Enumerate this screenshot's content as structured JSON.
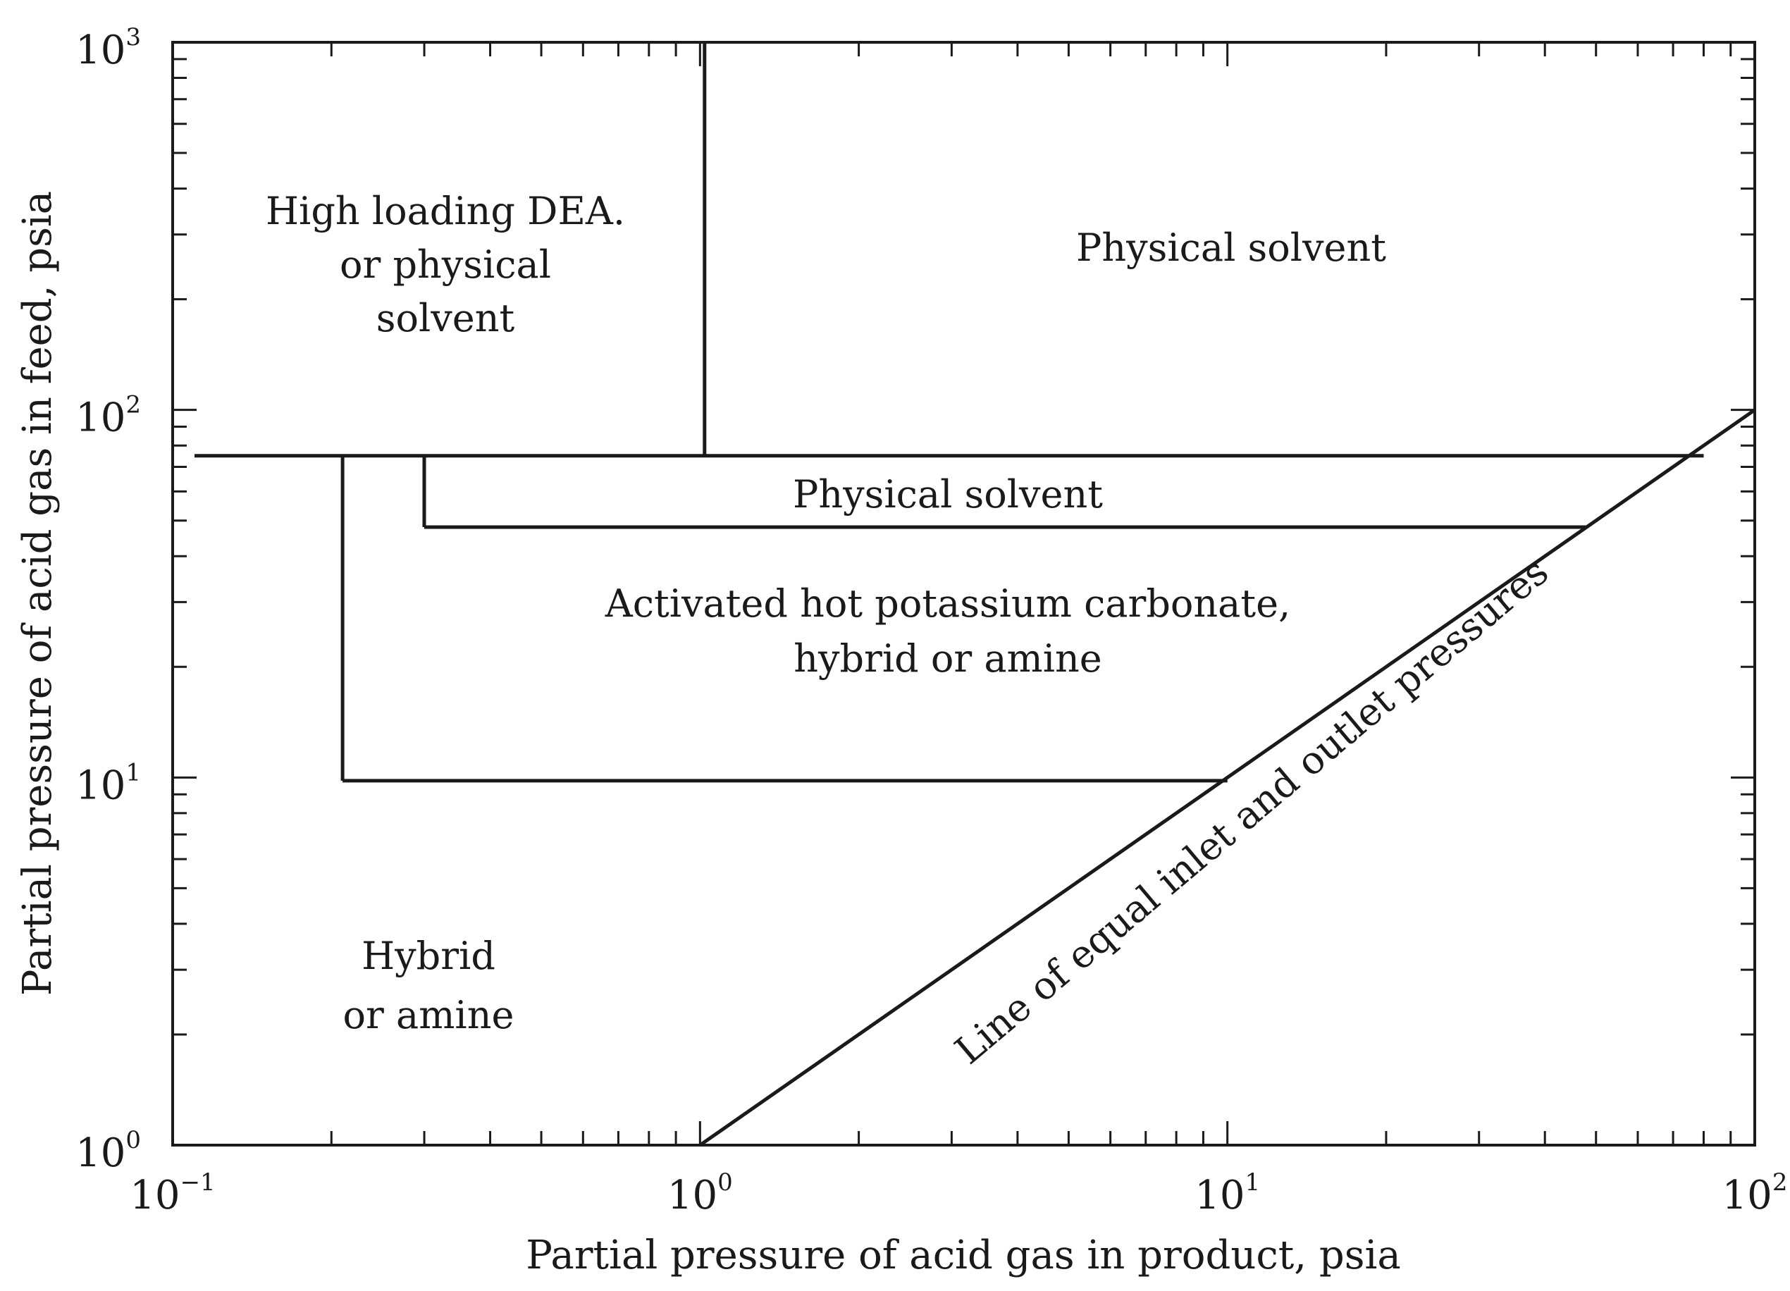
{
  "chart_data": {
    "type": "line",
    "title": "",
    "xlabel": "Partial pressure of acid gas in product, psia",
    "ylabel": "Partial pressure of acid gas in feed, psia",
    "x_scale": "log",
    "y_scale": "log",
    "xlim": [
      0.1,
      100
    ],
    "ylim": [
      1,
      1000
    ],
    "grid": false,
    "x_ticks": [
      {
        "base": "10",
        "exp": "−1",
        "value": 0.1
      },
      {
        "base": "10",
        "exp": "0",
        "value": 1
      },
      {
        "base": "10",
        "exp": "1",
        "value": 10
      },
      {
        "base": "10",
        "exp": "2",
        "value": 100
      }
    ],
    "y_ticks": [
      {
        "base": "10",
        "exp": "0",
        "value": 1
      },
      {
        "base": "10",
        "exp": "1",
        "value": 10
      },
      {
        "base": "10",
        "exp": "2",
        "value": 100
      },
      {
        "base": "10",
        "exp": "3",
        "value": 1000
      }
    ],
    "boundaries": [
      {
        "id": "top-horizontal",
        "points": [
          [
            0.11,
            75
          ],
          [
            80,
            75
          ]
        ]
      },
      {
        "id": "vertical-dea",
        "points": [
          [
            1.02,
            75
          ],
          [
            1.02,
            1000
          ]
        ]
      },
      {
        "id": "box-physical-left",
        "points": [
          [
            0.3,
            75
          ],
          [
            0.3,
            48
          ]
        ]
      },
      {
        "id": "box-physical-bottom",
        "points": [
          [
            0.3,
            48
          ],
          [
            48,
            48
          ]
        ]
      },
      {
        "id": "box-hybrid-left",
        "points": [
          [
            0.21,
            75
          ],
          [
            0.21,
            9.8
          ]
        ]
      },
      {
        "id": "box-hybrid-bottom",
        "points": [
          [
            0.21,
            9.8
          ],
          [
            10,
            9.8
          ]
        ]
      },
      {
        "id": "equal-line",
        "points": [
          [
            1,
            1
          ],
          [
            100,
            100
          ]
        ]
      }
    ],
    "regions": [
      {
        "id": "region-dea",
        "lines": [
          "High loading DEA.",
          "or physical",
          "solvent"
        ]
      },
      {
        "id": "region-physical-top",
        "lines": [
          "Physical solvent"
        ]
      },
      {
        "id": "region-physical-mid",
        "lines": [
          "Physical solvent"
        ]
      },
      {
        "id": "region-carbonate",
        "lines": [
          "Activated hot potassium carbonate,",
          "hybrid or amine"
        ]
      },
      {
        "id": "region-hybrid",
        "lines": [
          "Hybrid",
          "or amine"
        ]
      }
    ],
    "line_annotation": "Line of equal inlet and outlet pressures"
  }
}
